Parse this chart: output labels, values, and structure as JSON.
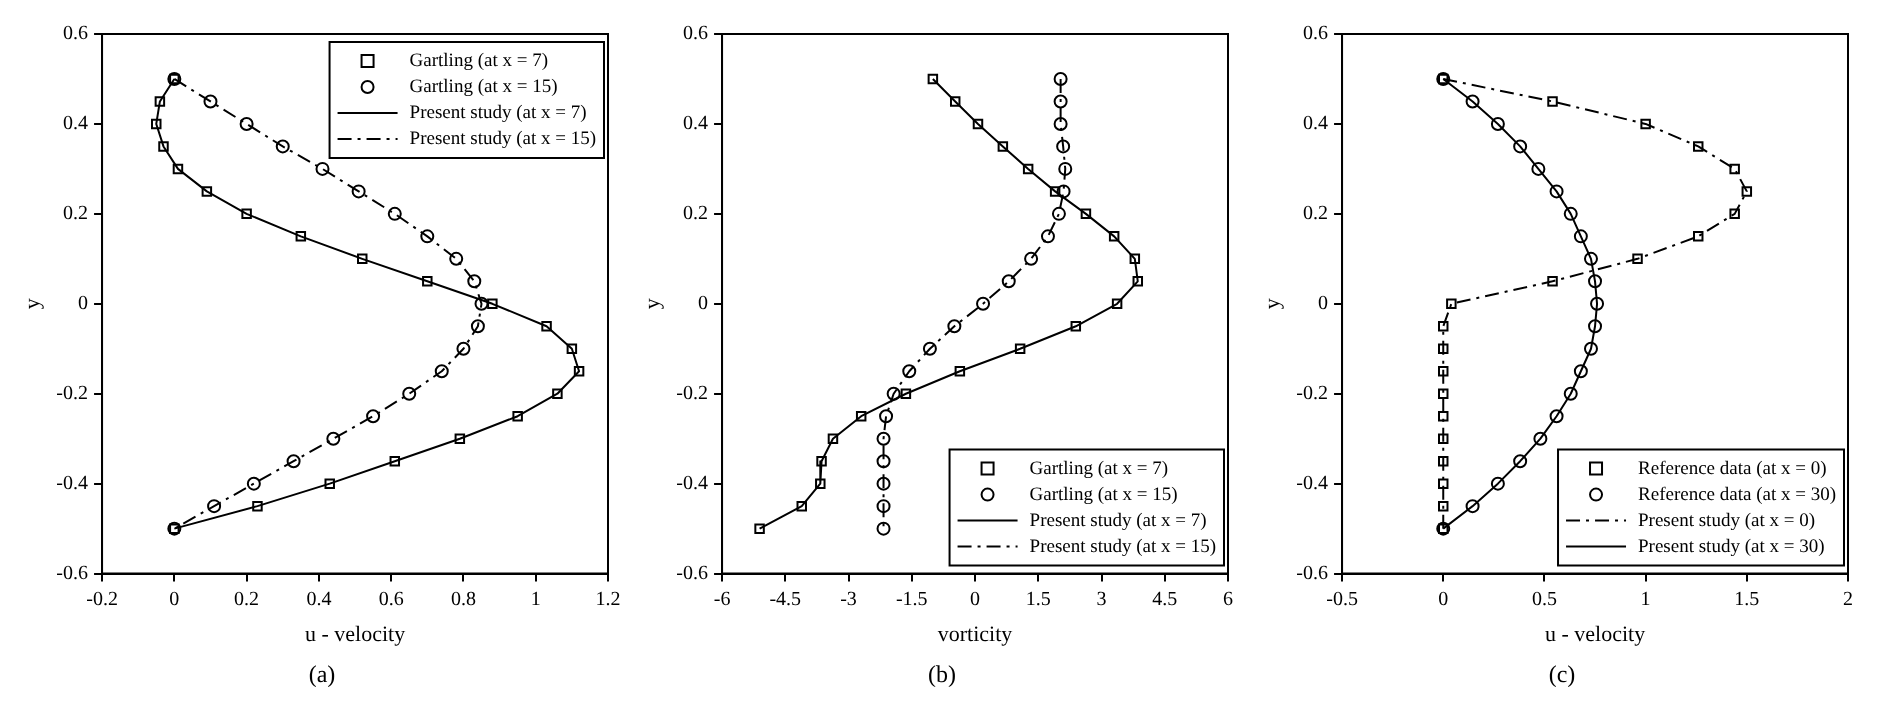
{
  "chart_data": [
    {
      "type": "scatter",
      "xlabel": "u - velocity",
      "ylabel": "y",
      "xlim": [
        -0.2,
        1.2
      ],
      "xticks": [
        -0.2,
        0,
        0.2,
        0.4,
        0.6,
        0.8,
        1,
        1.2
      ],
      "ylim": [
        -0.6,
        0.6
      ],
      "yticks": [
        -0.6,
        -0.4,
        -0.2,
        0,
        0.2,
        0.4,
        0.6
      ],
      "legend": "top right",
      "annotations": [
        "(a)"
      ],
      "series": [
        {
          "name": "Gartling (at x = 7)",
          "type": "scatter",
          "marker": "square",
          "color": "#000000",
          "x": [
            -0.04,
            -0.05,
            -0.03,
            0.01,
            0.09,
            0.2,
            0.35,
            0.52,
            0.7,
            0.88,
            1.03,
            1.1,
            1.12,
            1.06,
            0.95,
            0.79,
            0.61,
            0.43,
            0.23,
            0,
            0
          ],
          "values": [
            0.45,
            0.4,
            0.35,
            0.3,
            0.25,
            0.2,
            0.15,
            0.1,
            0.05,
            0,
            -0.05,
            -0.1,
            -0.15,
            -0.2,
            -0.25,
            -0.3,
            -0.35,
            -0.4,
            -0.45,
            -0.5,
            0.5
          ]
        },
        {
          "name": "Gartling (at x = 15)",
          "type": "scatter",
          "marker": "circle",
          "color": "#000000",
          "x": [
            0.1,
            0.2,
            0.3,
            0.41,
            0.51,
            0.61,
            0.7,
            0.78,
            0.83,
            0.85,
            0.84,
            0.8,
            0.74,
            0.65,
            0.55,
            0.44,
            0.33,
            0.22,
            0.11,
            0,
            0
          ],
          "values": [
            0.45,
            0.4,
            0.35,
            0.3,
            0.25,
            0.2,
            0.15,
            0.1,
            0.05,
            0,
            -0.05,
            -0.1,
            -0.15,
            -0.2,
            -0.25,
            -0.3,
            -0.35,
            -0.4,
            -0.45,
            -0.5,
            0.5
          ]
        },
        {
          "name": "Present study (at x = 7)",
          "type": "line",
          "marker": "none",
          "line_style": "solid",
          "color": "#000000",
          "x": [
            0,
            -0.04,
            -0.05,
            -0.03,
            0.01,
            0.09,
            0.2,
            0.35,
            0.52,
            0.7,
            0.88,
            1.03,
            1.1,
            1.12,
            1.06,
            0.95,
            0.79,
            0.61,
            0.43,
            0.23,
            0
          ],
          "values": [
            0.5,
            0.45,
            0.4,
            0.35,
            0.3,
            0.25,
            0.2,
            0.15,
            0.1,
            0.05,
            0,
            -0.05,
            -0.1,
            -0.15,
            -0.2,
            -0.25,
            -0.3,
            -0.35,
            -0.4,
            -0.45,
            -0.5
          ]
        },
        {
          "name": "Present study (at x = 15)",
          "type": "line",
          "marker": "none",
          "line_style": "dashed",
          "color": "#000000",
          "x": [
            0,
            0.1,
            0.2,
            0.3,
            0.41,
            0.51,
            0.61,
            0.7,
            0.78,
            0.83,
            0.85,
            0.84,
            0.8,
            0.74,
            0.65,
            0.55,
            0.44,
            0.33,
            0.22,
            0.11,
            0
          ],
          "values": [
            0.5,
            0.45,
            0.4,
            0.35,
            0.3,
            0.25,
            0.2,
            0.15,
            0.1,
            0.05,
            0,
            -0.05,
            -0.1,
            -0.15,
            -0.2,
            -0.25,
            -0.3,
            -0.35,
            -0.4,
            -0.45,
            -0.5
          ]
        }
      ]
    },
    {
      "type": "scatter",
      "xlabel": "vorticity",
      "ylabel": "y",
      "xlim": [
        -6,
        6
      ],
      "xticks": [
        -6,
        -4.5,
        -3,
        -1.5,
        0,
        1.5,
        3,
        4.5,
        6
      ],
      "ylim": [
        -0.6,
        0.6
      ],
      "yticks": [
        -0.6,
        -0.4,
        -0.2,
        0,
        0.2,
        0.4,
        0.6
      ],
      "legend": "bottom right",
      "annotations": [
        "(b)"
      ],
      "series": [
        {
          "name": "Gartling (at x = 7)",
          "type": "scatter",
          "marker": "square",
          "color": "#000000",
          "x": [
            -1.0,
            -0.47,
            0.07,
            0.66,
            1.26,
            1.9,
            2.63,
            3.3,
            3.79,
            3.86,
            3.37,
            2.39,
            1.07,
            -0.36,
            -1.64,
            -2.7,
            -3.37,
            -3.64,
            -3.67,
            -4.11,
            -5.11
          ],
          "values": [
            0.5,
            0.45,
            0.4,
            0.35,
            0.3,
            0.25,
            0.2,
            0.15,
            0.1,
            0.05,
            0,
            -0.05,
            -0.1,
            -0.15,
            -0.2,
            -0.25,
            -0.3,
            -0.35,
            -0.4,
            -0.45,
            -0.5
          ]
        },
        {
          "name": "Gartling (at x = 15)",
          "type": "scatter",
          "marker": "circle",
          "color": "#000000",
          "x": [
            2.03,
            2.03,
            2.03,
            2.09,
            2.14,
            2.1,
            1.99,
            1.73,
            1.33,
            0.8,
            0.19,
            -0.49,
            -1.07,
            -1.56,
            -1.93,
            -2.11,
            -2.17,
            -2.17,
            -2.17,
            -2.17,
            -2.17
          ],
          "values": [
            0.5,
            0.45,
            0.4,
            0.35,
            0.3,
            0.25,
            0.2,
            0.15,
            0.1,
            0.05,
            0,
            -0.05,
            -0.1,
            -0.15,
            -0.2,
            -0.25,
            -0.3,
            -0.35,
            -0.4,
            -0.45,
            -0.5
          ]
        },
        {
          "name": "Present study (at x = 7)",
          "type": "line",
          "marker": "none",
          "line_style": "solid",
          "color": "#000000",
          "x": [
            -1.0,
            -0.47,
            0.07,
            0.66,
            1.26,
            1.9,
            2.63,
            3.3,
            3.79,
            3.86,
            3.37,
            2.39,
            1.07,
            -0.36,
            -1.64,
            -2.7,
            -3.37,
            -3.64,
            -3.67,
            -4.11,
            -5.11
          ],
          "values": [
            0.5,
            0.45,
            0.4,
            0.35,
            0.3,
            0.25,
            0.2,
            0.15,
            0.1,
            0.05,
            0,
            -0.05,
            -0.1,
            -0.15,
            -0.2,
            -0.25,
            -0.3,
            -0.35,
            -0.4,
            -0.45,
            -0.5
          ]
        },
        {
          "name": "Present study (at x = 15)",
          "type": "line",
          "marker": "none",
          "line_style": "dashed",
          "color": "#000000",
          "x": [
            2.03,
            2.03,
            2.03,
            2.09,
            2.14,
            2.1,
            1.99,
            1.73,
            1.33,
            0.8,
            0.19,
            -0.49,
            -1.07,
            -1.56,
            -1.93,
            -2.11,
            -2.17,
            -2.17,
            -2.17,
            -2.17,
            -2.17
          ],
          "values": [
            0.5,
            0.45,
            0.4,
            0.35,
            0.3,
            0.25,
            0.2,
            0.15,
            0.1,
            0.05,
            0,
            -0.05,
            -0.1,
            -0.15,
            -0.2,
            -0.25,
            -0.3,
            -0.35,
            -0.4,
            -0.45,
            -0.5
          ]
        }
      ]
    },
    {
      "type": "scatter",
      "xlabel": "u - velocity",
      "ylabel": "y",
      "xlim": [
        -0.5,
        2
      ],
      "xticks": [
        -0.5,
        0,
        0.5,
        1,
        1.5,
        2
      ],
      "ylim": [
        -0.6,
        0.6
      ],
      "yticks": [
        -0.6,
        -0.4,
        -0.2,
        0,
        0.2,
        0.4,
        0.6
      ],
      "legend": "bottom right",
      "annotations": [
        "(c)"
      ],
      "series": [
        {
          "name": "Reference data (at x = 0)",
          "type": "scatter",
          "marker": "square",
          "color": "#000000",
          "x": [
            0.54,
            1.0,
            1.26,
            1.44,
            1.5,
            1.44,
            1.26,
            0.96,
            0.54,
            0.04,
            0,
            0,
            0,
            0,
            0,
            0,
            0,
            0,
            0,
            0,
            0
          ],
          "values": [
            0.45,
            0.4,
            0.35,
            0.3,
            0.25,
            0.2,
            0.15,
            0.1,
            0.05,
            0,
            -0.05,
            -0.1,
            -0.15,
            -0.2,
            -0.25,
            -0.3,
            -0.35,
            -0.4,
            -0.45,
            -0.5,
            0.5
          ]
        },
        {
          "name": "Reference data (at x = 30)",
          "type": "scatter",
          "marker": "circle",
          "color": "#000000",
          "x": [
            0.145,
            0.27,
            0.38,
            0.47,
            0.56,
            0.63,
            0.68,
            0.73,
            0.75,
            0.76,
            0.75,
            0.73,
            0.68,
            0.63,
            0.56,
            0.48,
            0.38,
            0.27,
            0.145,
            0,
            0
          ],
          "values": [
            0.45,
            0.4,
            0.35,
            0.3,
            0.25,
            0.2,
            0.15,
            0.1,
            0.05,
            0,
            -0.05,
            -0.1,
            -0.15,
            -0.2,
            -0.25,
            -0.3,
            -0.35,
            -0.4,
            -0.45,
            -0.5,
            0.5
          ]
        },
        {
          "name": "Present study (at x = 0)",
          "type": "line",
          "marker": "none",
          "line_style": "dashed",
          "color": "#000000",
          "x": [
            0,
            0.54,
            1.0,
            1.26,
            1.44,
            1.5,
            1.44,
            1.26,
            0.96,
            0.54,
            0.04,
            0,
            0,
            0,
            0,
            0,
            0,
            0,
            0,
            0,
            0
          ],
          "values": [
            0.5,
            0.45,
            0.4,
            0.35,
            0.3,
            0.25,
            0.2,
            0.15,
            0.1,
            0.05,
            0,
            -0.05,
            -0.1,
            -0.15,
            -0.2,
            -0.25,
            -0.3,
            -0.35,
            -0.4,
            -0.45,
            -0.5
          ]
        },
        {
          "name": "Present study (at x = 30)",
          "type": "line",
          "marker": "none",
          "line_style": "solid",
          "color": "#000000",
          "x": [
            0,
            0.145,
            0.27,
            0.38,
            0.47,
            0.56,
            0.63,
            0.68,
            0.73,
            0.75,
            0.76,
            0.75,
            0.73,
            0.68,
            0.63,
            0.56,
            0.48,
            0.38,
            0.27,
            0.145,
            0
          ],
          "values": [
            0.5,
            0.45,
            0.4,
            0.35,
            0.3,
            0.25,
            0.2,
            0.15,
            0.1,
            0.05,
            0,
            -0.05,
            -0.1,
            -0.15,
            -0.2,
            -0.25,
            -0.3,
            -0.35,
            -0.4,
            -0.45,
            -0.5
          ]
        }
      ]
    }
  ]
}
